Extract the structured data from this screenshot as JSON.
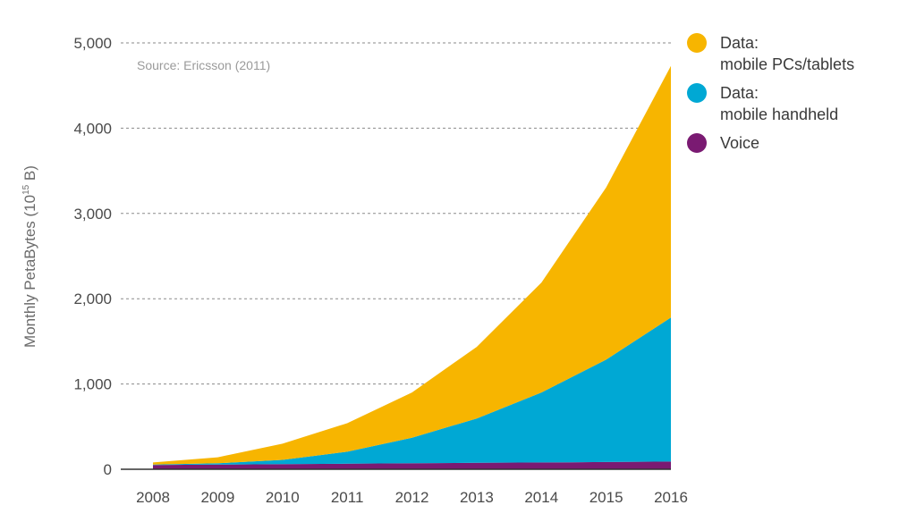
{
  "chart_data": {
    "type": "area",
    "stacked": true,
    "source_note": "Source: Ericsson (2011)",
    "ylabel": {
      "prefix": "Monthly PetaBytes (10",
      "superscript": "15",
      "suffix": " B)"
    },
    "xlabel": "",
    "x": [
      "2008",
      "2009",
      "2010",
      "2011",
      "2012",
      "2013",
      "2014",
      "2015",
      "2016"
    ],
    "ylim": [
      0,
      5000
    ],
    "yticks": [
      0,
      1000,
      2000,
      3000,
      4000,
      5000
    ],
    "ytick_labels": [
      "0",
      "1,000",
      "2,000",
      "3,000",
      "4,000",
      "5,000"
    ],
    "grid": "horizontal dashed",
    "legend_position": "right",
    "series": [
      {
        "name_lines": [
          "Voice"
        ],
        "color": "#7a1a72",
        "values": [
          50,
          55,
          60,
          65,
          70,
          75,
          80,
          85,
          90
        ]
      },
      {
        "name_lines": [
          "Data:",
          "mobile handheld"
        ],
        "color": "#00a8d4",
        "values": [
          5,
          15,
          50,
          140,
          300,
          520,
          820,
          1200,
          1690
        ]
      },
      {
        "name_lines": [
          "Data:",
          "mobile PCs/tablets"
        ],
        "color": "#f7b500",
        "values": [
          25,
          70,
          190,
          335,
          530,
          840,
          1290,
          2020,
          2950
        ]
      }
    ],
    "legend_order": [
      2,
      1,
      0
    ]
  }
}
